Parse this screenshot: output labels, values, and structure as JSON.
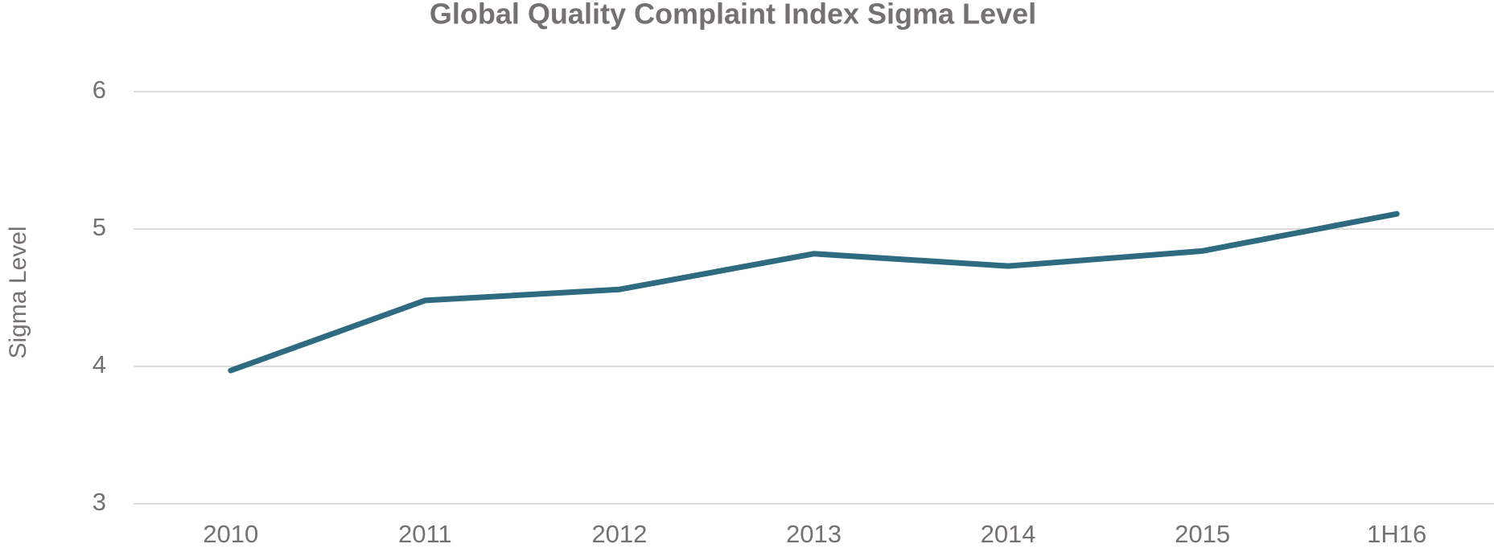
{
  "chart_data": {
    "type": "line",
    "title": "Global Quality Complaint Index Sigma Level",
    "y_label": "Sigma Level",
    "categories": [
      "2010",
      "2011",
      "2012",
      "2013",
      "2014",
      "2015",
      "1H16"
    ],
    "series": [
      {
        "name": "Sigma Level",
        "color": "#2e6b80",
        "values": [
          3.97,
          4.48,
          4.56,
          4.82,
          4.73,
          4.84,
          5.11
        ]
      }
    ],
    "ylim": [
      3,
      6
    ],
    "yticks": [
      3,
      4,
      5,
      6
    ],
    "grid": true
  }
}
